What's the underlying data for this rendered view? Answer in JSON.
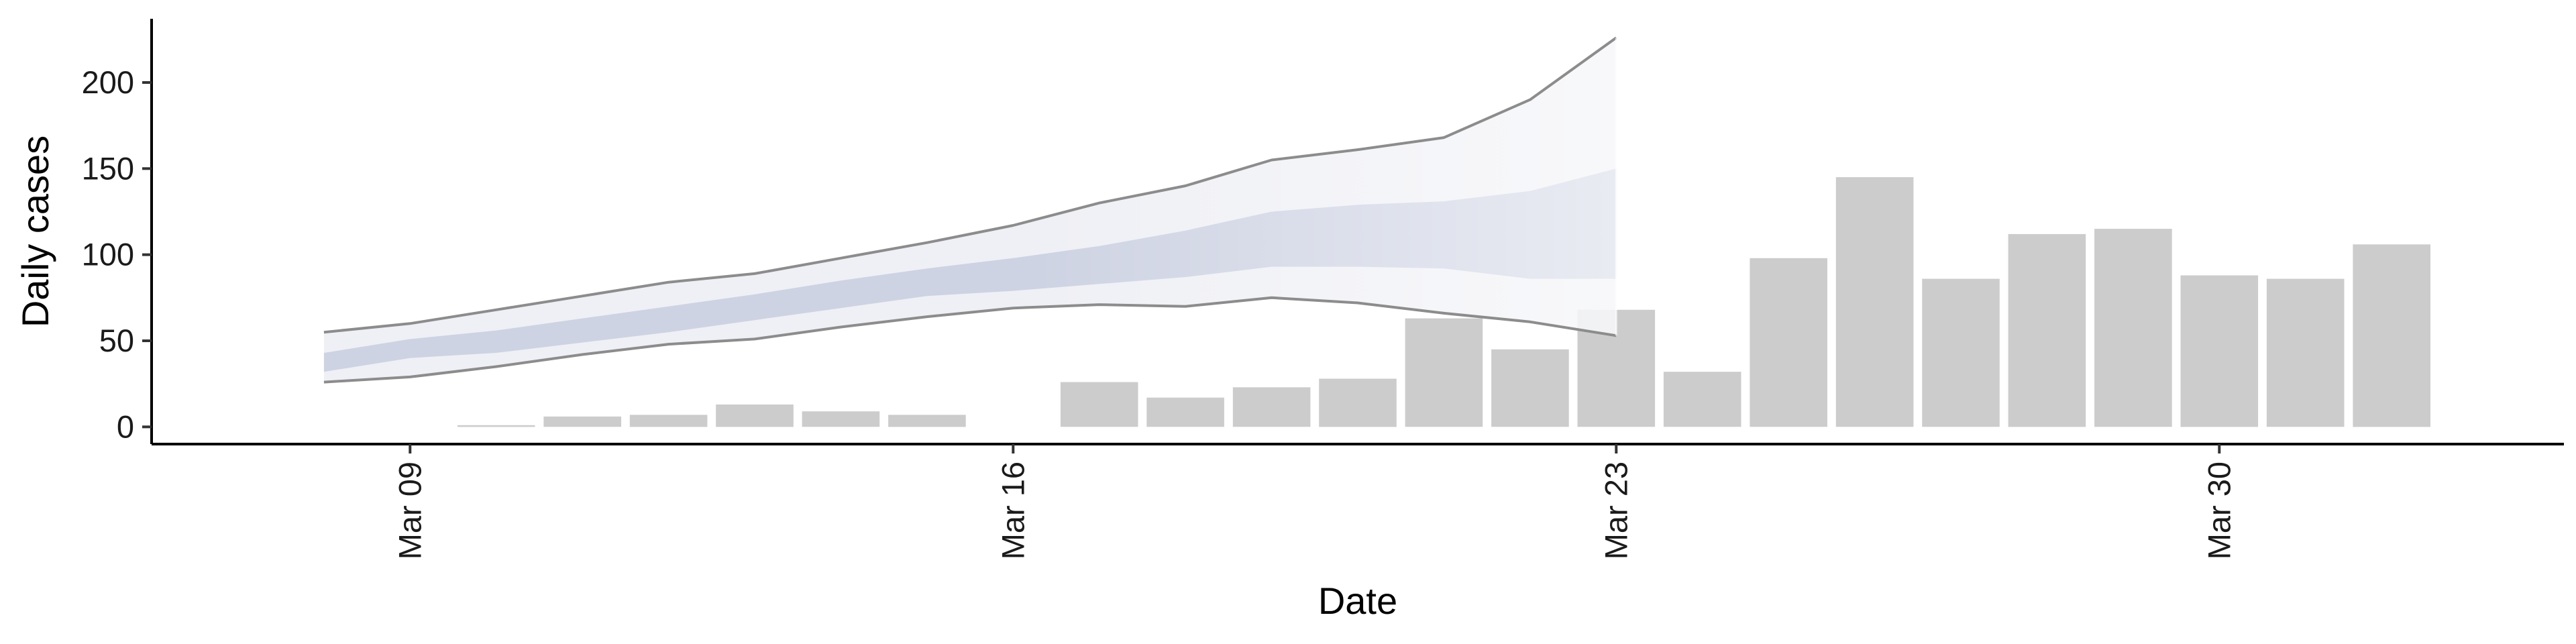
{
  "chart_data": {
    "type": "bar",
    "title": "",
    "xlabel": "Date",
    "ylabel": "Daily cases",
    "ylim": [
      -10,
      237
    ],
    "yticks": [
      0,
      50,
      100,
      150,
      200
    ],
    "x_range": [
      "2020-03-06",
      "2020-04-03"
    ],
    "x_ticks": [
      {
        "date": "2020-03-09",
        "label": "Mar 09"
      },
      {
        "date": "2020-03-16",
        "label": "Mar 16"
      },
      {
        "date": "2020-03-23",
        "label": "Mar 23"
      },
      {
        "date": "2020-03-30",
        "label": "Mar 30"
      }
    ],
    "grid": false,
    "bars": {
      "color": "#cccccc",
      "points": [
        {
          "date": "2020-03-10",
          "value": 1
        },
        {
          "date": "2020-03-11",
          "value": 6
        },
        {
          "date": "2020-03-12",
          "value": 7
        },
        {
          "date": "2020-03-13",
          "value": 13
        },
        {
          "date": "2020-03-14",
          "value": 9
        },
        {
          "date": "2020-03-15",
          "value": 7
        },
        {
          "date": "2020-03-17",
          "value": 26
        },
        {
          "date": "2020-03-18",
          "value": 17
        },
        {
          "date": "2020-03-19",
          "value": 23
        },
        {
          "date": "2020-03-20",
          "value": 28
        },
        {
          "date": "2020-03-21",
          "value": 63
        },
        {
          "date": "2020-03-22",
          "value": 45
        },
        {
          "date": "2020-03-23",
          "value": 68
        },
        {
          "date": "2020-03-24",
          "value": 32
        },
        {
          "date": "2020-03-25",
          "value": 98
        },
        {
          "date": "2020-03-26",
          "value": 145
        },
        {
          "date": "2020-03-27",
          "value": 86
        },
        {
          "date": "2020-03-28",
          "value": 112
        },
        {
          "date": "2020-03-29",
          "value": 115
        },
        {
          "date": "2020-03-30",
          "value": 88
        },
        {
          "date": "2020-03-31",
          "value": 86
        },
        {
          "date": "2020-04-01",
          "value": 106
        }
      ]
    },
    "forecast": {
      "dates": [
        "2020-03-08",
        "2020-03-09",
        "2020-03-10",
        "2020-03-11",
        "2020-03-12",
        "2020-03-13",
        "2020-03-14",
        "2020-03-15",
        "2020-03-16",
        "2020-03-17",
        "2020-03-18",
        "2020-03-19",
        "2020-03-20",
        "2020-03-21",
        "2020-03-22",
        "2020-03-23"
      ],
      "outer_lower": [
        26,
        29,
        35,
        42,
        48,
        51,
        58,
        64,
        69,
        71,
        70,
        75,
        72,
        66,
        61,
        53
      ],
      "outer_upper": [
        55,
        60,
        68,
        76,
        84,
        89,
        98,
        107,
        117,
        130,
        140,
        155,
        161,
        168,
        190,
        226
      ],
      "inner_lower": [
        32,
        40,
        43,
        49,
        55,
        62,
        69,
        76,
        79,
        83,
        87,
        93,
        93,
        92,
        86,
        86
      ],
      "inner_upper": [
        43,
        51,
        56,
        63,
        70,
        77,
        85,
        92,
        98,
        105,
        114,
        125,
        129,
        131,
        137,
        150
      ],
      "outer_fill_color": "#e9ebf2",
      "inner_fill_color": "#c3c9dc",
      "outer_line_color": "#8c8c8c"
    }
  }
}
